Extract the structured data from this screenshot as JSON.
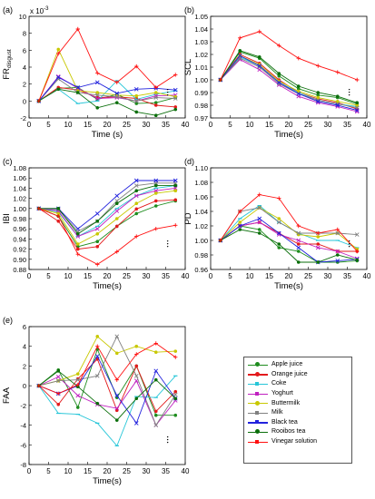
{
  "chart_data": [
    {
      "type": "line",
      "panel_label": "(a)",
      "ylabel": "FR",
      "ylabel_sub": "disgust",
      "xlabel": "Time (s)",
      "xlim": [
        0,
        40
      ],
      "ylim": [
        -2,
        10
      ],
      "xticks": [
        "0",
        "5",
        "10",
        "15",
        "20",
        "25",
        "30",
        "35",
        "40"
      ],
      "yticks": [
        "-2",
        "0",
        "2",
        "4",
        "6",
        "8",
        "10"
      ],
      "multiplier": "x 10",
      "multiplier_exp": "-3",
      "x": [
        2.5,
        7.5,
        12.5,
        17.5,
        22.5,
        27.5,
        32.5,
        37.5
      ],
      "series": [
        {
          "name": "Apple juice",
          "values": [
            0,
            1.5,
            1.6,
            0.2,
            0.8,
            -0.3,
            -0.2,
            0.4
          ]
        },
        {
          "name": "Orange juice",
          "values": [
            0,
            1.6,
            1.3,
            0.4,
            0.5,
            0.3,
            -0.5,
            -0.7
          ]
        },
        {
          "name": "Coke",
          "values": [
            0,
            1.4,
            -0.3,
            0,
            2.4,
            0.2,
            0.8,
            1.2
          ]
        },
        {
          "name": "Yoghurt",
          "values": [
            0,
            2.9,
            1.5,
            0.3,
            0.4,
            0,
            0.6,
            0.7
          ]
        },
        {
          "name": "Buttermilk",
          "values": [
            0,
            6.1,
            1.2,
            1.0,
            0.7,
            0.6,
            1.0,
            0.5
          ]
        },
        {
          "name": "Milk",
          "values": [
            0,
            2.6,
            1.0,
            0.7,
            0.5,
            0,
            0.4,
            0.3
          ]
        },
        {
          "name": "Black tea",
          "values": [
            0,
            2.8,
            1.6,
            2.2,
            0.9,
            1.4,
            1.5,
            1.3
          ]
        },
        {
          "name": "Rooibos tea",
          "values": [
            0,
            1.4,
            1.0,
            -0.8,
            -0.2,
            -1.3,
            -1.7,
            -1.0
          ]
        },
        {
          "name": "Vinegar solution",
          "values": [
            0,
            5.6,
            8.5,
            3.3,
            2.2,
            4.1,
            1.6,
            3.1
          ]
        }
      ]
    },
    {
      "type": "line",
      "panel_label": "(b)",
      "ylabel": "SCL",
      "xlabel": "Time(s)",
      "xlim": [
        0,
        40
      ],
      "ylim": [
        0.97,
        1.05
      ],
      "xticks": [
        "0",
        "5",
        "10",
        "15",
        "20",
        "25",
        "30",
        "35",
        "40"
      ],
      "yticks": [
        "0.97",
        "0.98",
        "0.99",
        "1.00",
        "1.01",
        "1.02",
        "1.03",
        "1.04",
        "1.05"
      ],
      "x": [
        2.5,
        7.5,
        12.5,
        17.5,
        22.5,
        27.5,
        32.5,
        37.5
      ],
      "series": [
        {
          "name": "Apple juice",
          "values": [
            1.0,
            1.022,
            1.017,
            1.003,
            0.993,
            0.988,
            0.986,
            0.981
          ]
        },
        {
          "name": "Orange juice",
          "values": [
            1.0,
            1.02,
            1.013,
            1.0,
            0.99,
            0.985,
            0.982,
            0.977
          ]
        },
        {
          "name": "Coke",
          "values": [
            1.0,
            1.018,
            1.011,
            0.998,
            0.99,
            0.984,
            0.981,
            0.979
          ]
        },
        {
          "name": "Yoghurt",
          "values": [
            1.0,
            1.016,
            1.008,
            0.996,
            0.987,
            0.982,
            0.979,
            0.975
          ]
        },
        {
          "name": "Buttermilk",
          "values": [
            1.0,
            1.019,
            1.012,
            0.999,
            0.991,
            0.986,
            0.983,
            0.98
          ]
        },
        {
          "name": "Milk",
          "values": [
            1.0,
            1.017,
            1.01,
            0.997,
            0.989,
            0.984,
            0.981,
            0.978
          ]
        },
        {
          "name": "Black tea",
          "values": [
            1.0,
            1.019,
            1.011,
            0.998,
            0.989,
            0.983,
            0.98,
            0.976
          ]
        },
        {
          "name": "Rooibos tea",
          "values": [
            1.0,
            1.023,
            1.018,
            1.005,
            0.995,
            0.99,
            0.987,
            0.982
          ]
        },
        {
          "name": "Vinegar solution",
          "values": [
            1.0,
            1.033,
            1.038,
            1.027,
            1.017,
            1.011,
            1.006,
            1.0
          ]
        }
      ]
    },
    {
      "type": "line",
      "panel_label": "(c)",
      "ylabel": "IBI",
      "xlabel": "Time(s)",
      "xlim": [
        0,
        40
      ],
      "ylim": [
        0.88,
        1.08
      ],
      "xticks": [
        "0",
        "5",
        "10",
        "15",
        "20",
        "25",
        "30",
        "35",
        "40"
      ],
      "yticks": [
        "0.88",
        "0.90",
        "0.92",
        "0.94",
        "0.96",
        "0.98",
        "1.00",
        "1.02",
        "1.04",
        "1.06",
        "1.08"
      ],
      "x": [
        2.5,
        7.5,
        12.5,
        17.5,
        22.5,
        27.5,
        32.5,
        37.5
      ],
      "series": [
        {
          "name": "Apple juice",
          "values": [
            1.0,
            0.985,
            0.925,
            0.935,
            0.965,
            0.99,
            1.005,
            1.015
          ]
        },
        {
          "name": "Orange juice",
          "values": [
            1.0,
            0.975,
            0.92,
            0.925,
            0.965,
            0.999,
            1.015,
            1.017
          ]
        },
        {
          "name": "Coke",
          "values": [
            1.0,
            0.993,
            0.945,
            0.965,
            1.0,
            1.025,
            1.04,
            1.045
          ]
        },
        {
          "name": "Yoghurt",
          "values": [
            1.0,
            0.995,
            0.945,
            0.96,
            0.995,
            1.025,
            1.035,
            1.04
          ]
        },
        {
          "name": "Buttermilk",
          "values": [
            1.0,
            0.99,
            0.93,
            0.95,
            0.98,
            1.01,
            1.03,
            1.035
          ]
        },
        {
          "name": "Milk",
          "values": [
            1.0,
            0.998,
            0.955,
            0.975,
            1.015,
            1.045,
            1.05,
            1.05
          ]
        },
        {
          "name": "Black tea",
          "values": [
            1.0,
            1.0,
            0.96,
            0.99,
            1.025,
            1.055,
            1.055,
            1.055
          ]
        },
        {
          "name": "Rooibos tea",
          "values": [
            1.0,
            1.0,
            0.95,
            0.975,
            1.01,
            1.035,
            1.045,
            1.045
          ]
        },
        {
          "name": "Vinegar solution",
          "values": [
            1.0,
            0.985,
            0.91,
            0.89,
            0.915,
            0.945,
            0.96,
            0.967
          ]
        }
      ]
    },
    {
      "type": "line",
      "panel_label": "(d)",
      "ylabel": "PD",
      "xlabel": "Time(s)",
      "xlim": [
        0,
        40
      ],
      "ylim": [
        0.96,
        1.1
      ],
      "xticks": [
        "0",
        "5",
        "10",
        "15",
        "20",
        "25",
        "30",
        "35",
        "40"
      ],
      "yticks": [
        "0.96",
        "0.98",
        "1.00",
        "1.02",
        "1.04",
        "1.06",
        "1.08",
        "1.10"
      ],
      "x": [
        2.5,
        7.5,
        12.5,
        17.5,
        22.5,
        27.5,
        32.5,
        37.5
      ],
      "series": [
        {
          "name": "Apple juice",
          "values": [
            1.0,
            1.02,
            1.015,
            0.99,
            0.985,
            0.97,
            0.97,
            0.972
          ]
        },
        {
          "name": "Orange juice",
          "values": [
            1.0,
            1.02,
            1.025,
            1.01,
            0.995,
            0.995,
            0.985,
            0.985
          ]
        },
        {
          "name": "Coke",
          "values": [
            1.0,
            1.03,
            1.048,
            1.025,
            1.01,
            1.0,
            1.0,
            0.99
          ]
        },
        {
          "name": "Yoghurt",
          "values": [
            1.0,
            1.02,
            1.025,
            1.008,
            1.0,
            0.99,
            0.985,
            0.975
          ]
        },
        {
          "name": "Buttermilk",
          "values": [
            1.0,
            1.025,
            1.045,
            1.03,
            1.008,
            1.005,
            1.01,
            0.988
          ]
        },
        {
          "name": "Milk",
          "values": [
            1.0,
            1.04,
            1.045,
            1.025,
            1.01,
            1.01,
            1.01,
            1.008
          ]
        },
        {
          "name": "Black tea",
          "values": [
            1.0,
            1.02,
            1.03,
            1.01,
            0.99,
            0.97,
            0.972,
            0.974
          ]
        },
        {
          "name": "Rooibos tea",
          "values": [
            1.0,
            1.015,
            1.01,
            0.995,
            0.97,
            0.97,
            0.98,
            0.973
          ]
        },
        {
          "name": "Vinegar solution",
          "values": [
            1.0,
            1.04,
            1.063,
            1.058,
            1.02,
            1.01,
            1.015,
            0.985
          ]
        }
      ]
    },
    {
      "type": "line",
      "panel_label": "(e)",
      "ylabel": "FAA",
      "xlabel": "Time(s)",
      "xlim": [
        0,
        40
      ],
      "ylim": [
        -8,
        6
      ],
      "xticks": [
        "0",
        "5",
        "10",
        "15",
        "20",
        "25",
        "30",
        "35",
        "40"
      ],
      "yticks": [
        "-8",
        "-6",
        "-4",
        "-2",
        "0",
        "2",
        "4",
        "6"
      ],
      "x": [
        2.5,
        7.5,
        12.5,
        17.5,
        22.5,
        27.5,
        32.5,
        37.5
      ],
      "series": [
        {
          "name": "Apple juice",
          "values": [
            0,
            1.6,
            -2.2,
            3.7,
            -1.2,
            2.0,
            -3.0,
            -3.0
          ]
        },
        {
          "name": "Orange juice",
          "values": [
            0,
            -1.9,
            0.7,
            2.7,
            -2.5,
            2.0,
            -2.6,
            -0.6
          ]
        },
        {
          "name": "Coke",
          "values": [
            0,
            -2.8,
            -2.9,
            -3.8,
            -6.1,
            -1.1,
            -1.2,
            1.0
          ]
        },
        {
          "name": "Yoghurt",
          "values": [
            0,
            0.9,
            -1.0,
            -1.9,
            -2.3,
            0.5,
            -4.0,
            -1.5
          ]
        },
        {
          "name": "Buttermilk",
          "values": [
            0,
            0.5,
            1.2,
            5.0,
            3.3,
            4.0,
            3.4,
            3.5
          ]
        },
        {
          "name": "Milk",
          "values": [
            0,
            0.5,
            0.6,
            1.0,
            5.0,
            1.0,
            -4.0,
            -0.9
          ]
        },
        {
          "name": "Black tea",
          "values": [
            0,
            -0.8,
            0,
            3.0,
            -1.0,
            -3.8,
            1.5,
            -1.3
          ]
        },
        {
          "name": "Rooibos tea",
          "values": [
            0,
            1.5,
            -0.1,
            -1.8,
            -3.5,
            -1.3,
            0.6,
            -1.3
          ]
        },
        {
          "name": "Vinegar solution",
          "values": [
            0,
            -0.8,
            0.1,
            4.0,
            0.6,
            3.2,
            4.3,
            2.9
          ]
        }
      ]
    }
  ],
  "legend": [
    {
      "name": "Apple juice",
      "color": "#1e8c1e",
      "marker": "dot"
    },
    {
      "name": "Orange juice",
      "color": "#e31a1c",
      "marker": "dot"
    },
    {
      "name": "Coke",
      "color": "#27c6d8",
      "marker": "dash"
    },
    {
      "name": "Yoghurt",
      "color": "#c020c0",
      "marker": "cross"
    },
    {
      "name": "Buttermilk",
      "color": "#c8c800",
      "marker": "dot"
    },
    {
      "name": "Milk",
      "color": "#808080",
      "marker": "cross"
    },
    {
      "name": "Black tea",
      "color": "#2222dd",
      "marker": "cross"
    },
    {
      "name": "Rooibos tea",
      "color": "#0a6e0a",
      "marker": "dot"
    },
    {
      "name": "Vinegar solution",
      "color": "#ff1010",
      "marker": "plus"
    }
  ]
}
